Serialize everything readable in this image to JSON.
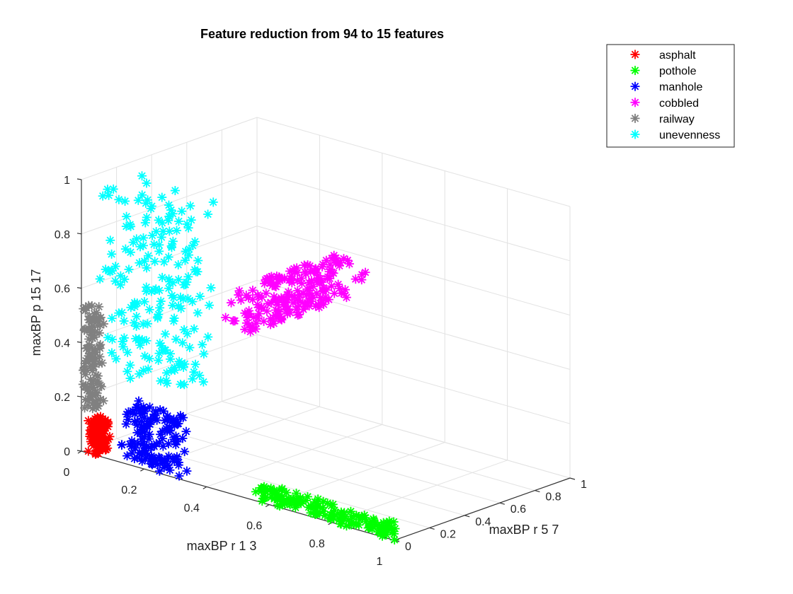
{
  "chart_data": {
    "type": "scatter",
    "title": "Feature reduction from 94 to 15 features",
    "xlabel": "maxBP r 1 3",
    "ylabel": "maxBP r 5 7",
    "zlabel": "maxBP p 15 17",
    "xlim": [
      0,
      1
    ],
    "ylim": [
      0,
      1
    ],
    "zlim": [
      0,
      1
    ],
    "x_ticks": [
      "0",
      "0.2",
      "0.4",
      "0.6",
      "0.8",
      "1"
    ],
    "y_ticks": [
      "0",
      "0.2",
      "0.4",
      "0.6",
      "0.8",
      "1"
    ],
    "z_ticks": [
      "0",
      "0.2",
      "0.4",
      "0.6",
      "0.8",
      "1"
    ],
    "grid": true,
    "view": "3d",
    "marker": "asterisk",
    "legend_position": "top-right outside",
    "series": [
      {
        "name": "asphalt",
        "color": "#ff0000",
        "x": [
          0.02,
          0.05
        ],
        "y": [
          0.0,
          0.08
        ],
        "z": [
          0.0,
          0.12
        ],
        "seed": 11,
        "count": 120
      },
      {
        "name": "pothole",
        "color": "#00ff00",
        "x": [
          0.55,
          1.0
        ],
        "y": [
          0.0,
          0.05
        ],
        "z": [
          0.0,
          0.06
        ],
        "seed": 23,
        "count": 150
      },
      {
        "name": "manhole",
        "color": "#0000ff",
        "x": [
          0.12,
          0.3
        ],
        "y": [
          0.0,
          0.08
        ],
        "z": [
          0.0,
          0.22
        ],
        "seed": 37,
        "count": 140
      },
      {
        "name": "cobbled",
        "color": "#ff00ff",
        "x": [
          0.25,
          0.55
        ],
        "y": [
          0.35,
          0.65
        ],
        "z": [
          0.4,
          0.8
        ],
        "seed": 41,
        "count": 200
      },
      {
        "name": "railway",
        "color": "#808080",
        "x": [
          0.0,
          0.04
        ],
        "y": [
          0.0,
          0.06
        ],
        "z": [
          0.15,
          0.54
        ],
        "seed": 53,
        "count": 110
      },
      {
        "name": "unevenness",
        "color": "#00ffff",
        "x": [
          0.05,
          0.3
        ],
        "y": [
          0.0,
          0.25
        ],
        "z": [
          0.3,
          1.0
        ],
        "seed": 67,
        "count": 200
      }
    ]
  }
}
